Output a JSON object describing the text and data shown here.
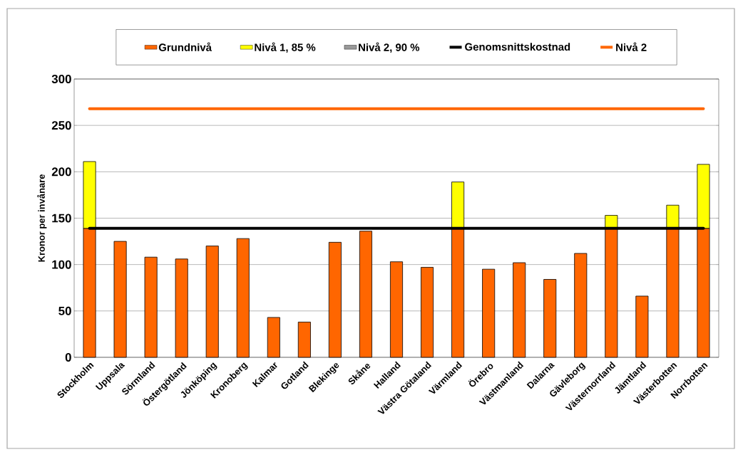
{
  "chart_data": {
    "type": "bar",
    "stacked": true,
    "categories": [
      "Stockholm",
      "Uppsala",
      "Sörmland",
      "Östergötland",
      "Jönköping",
      "Kronoberg",
      "Kalmar",
      "Gotland",
      "Blekinge",
      "Skåne",
      "Halland",
      "Västra Götaland",
      "Värmland",
      "Örebro",
      "Västmanland",
      "Dalarna",
      "Gävleborg",
      "Västernorrland",
      "Jämtland",
      "Västerbotten",
      "Norrbotten"
    ],
    "ylabel": "Kronor per invånare",
    "ylim": [
      0,
      300
    ],
    "yticks": [
      0,
      50,
      100,
      150,
      200,
      250,
      300
    ],
    "grid": "y",
    "legend": "top",
    "series": [
      {
        "name": "Grundnivå",
        "color": "#ff6600",
        "values": [
          139,
          125,
          108,
          106,
          120,
          128,
          43,
          38,
          124,
          136,
          103,
          97,
          139,
          95,
          102,
          84,
          112,
          139,
          66,
          139,
          139
        ]
      },
      {
        "name": "Nivå 1, 85 %",
        "color": "#ffff00",
        "values": [
          72,
          null,
          null,
          null,
          null,
          null,
          null,
          null,
          null,
          null,
          null,
          null,
          50,
          null,
          null,
          null,
          null,
          14,
          null,
          25,
          69
        ]
      },
      {
        "name": "Nivå 2, 90 %",
        "color": "#999999",
        "values": [
          null,
          null,
          null,
          null,
          null,
          null,
          null,
          null,
          null,
          null,
          null,
          null,
          null,
          null,
          null,
          null,
          null,
          null,
          null,
          null,
          null
        ]
      },
      {
        "name": "Genomsnittskostnad",
        "type": "line",
        "color": "#000000",
        "values": [
          139,
          139,
          139,
          139,
          139,
          139,
          139,
          139,
          139,
          139,
          139,
          139,
          139,
          139,
          139,
          139,
          139,
          139,
          139,
          139,
          139
        ]
      },
      {
        "name": "Nivå 2",
        "type": "line",
        "color": "#ff6600",
        "values": [
          268,
          268,
          268,
          268,
          268,
          268,
          268,
          268,
          268,
          268,
          268,
          268,
          268,
          268,
          268,
          268,
          268,
          268,
          268,
          268,
          268
        ]
      }
    ]
  }
}
